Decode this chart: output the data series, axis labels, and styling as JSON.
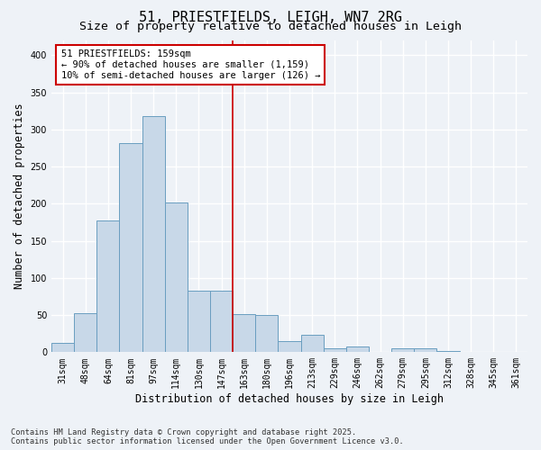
{
  "title": "51, PRIESTFIELDS, LEIGH, WN7 2RG",
  "subtitle": "Size of property relative to detached houses in Leigh",
  "xlabel": "Distribution of detached houses by size in Leigh",
  "ylabel": "Number of detached properties",
  "bar_color": "#c8d8e8",
  "bar_edge_color": "#6a9ec0",
  "background_color": "#eef2f7",
  "grid_color": "#ffffff",
  "categories": [
    "31sqm",
    "48sqm",
    "64sqm",
    "81sqm",
    "97sqm",
    "114sqm",
    "130sqm",
    "147sqm",
    "163sqm",
    "180sqm",
    "196sqm",
    "213sqm",
    "229sqm",
    "246sqm",
    "262sqm",
    "279sqm",
    "295sqm",
    "312sqm",
    "328sqm",
    "345sqm",
    "361sqm"
  ],
  "values": [
    12,
    53,
    178,
    282,
    318,
    202,
    83,
    83,
    51,
    50,
    15,
    23,
    5,
    8,
    0,
    5,
    5,
    2,
    0,
    0,
    0
  ],
  "ylim": [
    0,
    420
  ],
  "yticks": [
    0,
    50,
    100,
    150,
    200,
    250,
    300,
    350,
    400
  ],
  "vline_x_index": 8,
  "vline_color": "#cc0000",
  "annotation_text": "51 PRIESTFIELDS: 159sqm\n← 90% of detached houses are smaller (1,159)\n10% of semi-detached houses are larger (126) →",
  "annotation_box_color": "#ffffff",
  "annotation_box_edge": "#cc0000",
  "footnote": "Contains HM Land Registry data © Crown copyright and database right 2025.\nContains public sector information licensed under the Open Government Licence v3.0.",
  "title_fontsize": 11,
  "subtitle_fontsize": 9.5,
  "tick_fontsize": 7,
  "label_fontsize": 8.5,
  "annotation_fontsize": 7.5
}
